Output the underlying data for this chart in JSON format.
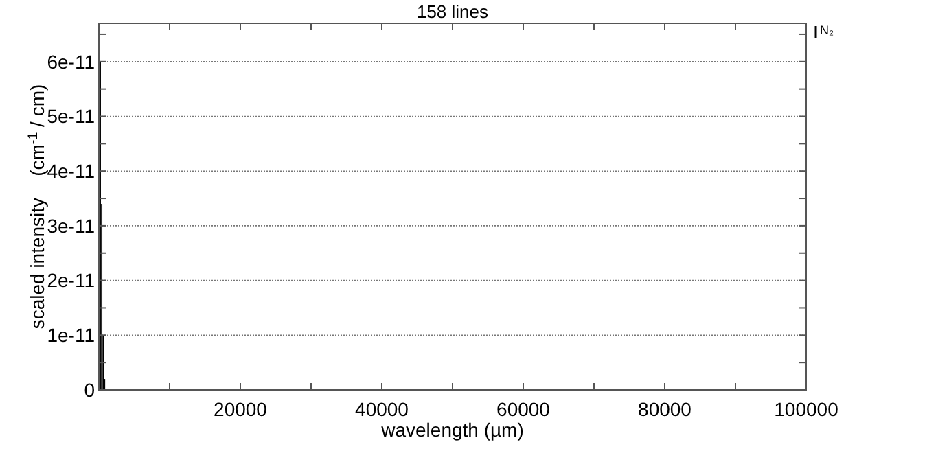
{
  "chart_data": {
    "type": "bar",
    "title": "158 lines",
    "xlabel": "wavelength (µm)",
    "ylabel": "scaled intensity    (cm$^{-1}$ / cm)",
    "x": [
      200,
      400,
      600,
      800
    ],
    "series": [
      {
        "name": "N₂",
        "color": "#000000",
        "values": [
          6e-11,
          3.4e-11,
          1e-11,
          2e-12
        ]
      }
    ],
    "xlim": [
      0,
      100000
    ],
    "xticks": [
      {
        "value": 10000,
        "label": null
      },
      20000,
      {
        "value": 30000,
        "label": null
      },
      40000,
      {
        "value": 50000,
        "label": null
      },
      60000,
      {
        "value": 70000,
        "label": null
      },
      80000,
      {
        "value": 90000,
        "label": null
      },
      100000
    ],
    "ylim": [
      0,
      6.7e-11
    ],
    "yticks": [
      {
        "value": 0,
        "label": "0"
      },
      {
        "value": 5e-12,
        "label": null
      },
      {
        "value": 1e-11,
        "label": "1e-11"
      },
      {
        "value": 1.5e-11,
        "label": null
      },
      {
        "value": 2e-11,
        "label": "2e-11"
      },
      {
        "value": 2.5e-11,
        "label": null
      },
      {
        "value": 3e-11,
        "label": "3e-11"
      },
      {
        "value": 3.5e-11,
        "label": null
      },
      {
        "value": 4e-11,
        "label": "4e-11"
      },
      {
        "value": 4.5e-11,
        "label": null
      },
      {
        "value": 5e-11,
        "label": "5e-11"
      },
      {
        "value": 5.5e-11,
        "label": null
      },
      {
        "value": 6e-11,
        "label": "6e-11"
      },
      {
        "value": 6.5e-11,
        "label": null
      }
    ],
    "grid": "y",
    "legend": "top right"
  }
}
